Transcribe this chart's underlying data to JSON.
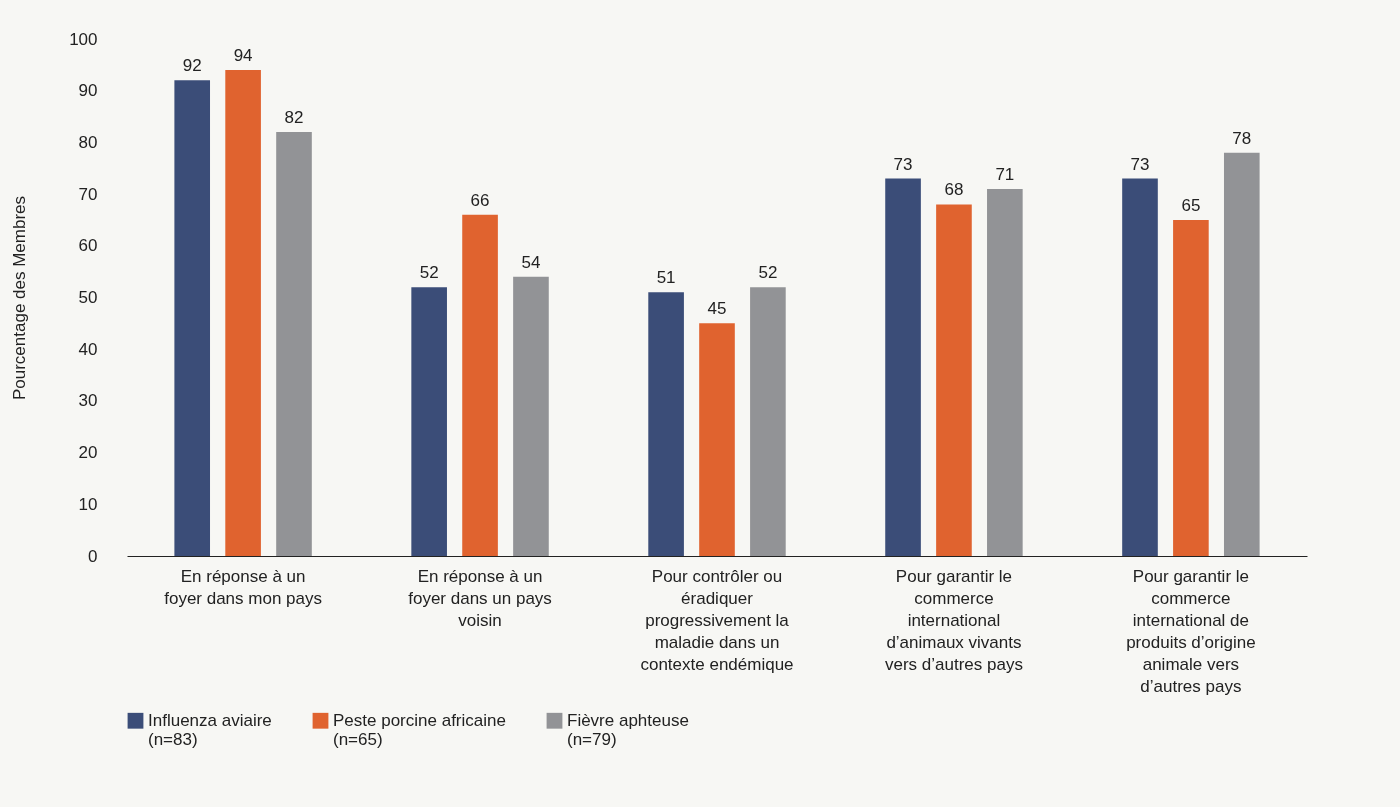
{
  "chart_data": {
    "type": "bar",
    "ylabel": "Pourcentage des Membres",
    "categories": [
      "En réponse à un foyer dans mon pays",
      "En réponse à un foyer dans un pays voisin",
      "Pour contrôler ou éradiquer progressivement la maladie dans un contexte endémique",
      "Pour garantir le commerce international d’animaux vivants vers d’autres pays",
      "Pour garantir le commerce international de produits d’origine animale vers d’autres pays"
    ],
    "series": [
      {
        "name": "Influenza aviaire (n=83)",
        "color": "#3b4d78",
        "values": [
          92,
          52,
          51,
          73,
          73
        ]
      },
      {
        "name": "Peste porcine africaine (n=65)",
        "color": "#e0632f",
        "values": [
          94,
          66,
          45,
          68,
          65
        ]
      },
      {
        "name": "Fièvre aphteuse (n=79)",
        "color": "#929396",
        "values": [
          82,
          54,
          52,
          71,
          78
        ]
      }
    ],
    "ylim": [
      0,
      100
    ],
    "yticks": [
      0,
      10,
      20,
      30,
      40,
      50,
      60,
      70,
      80,
      90,
      100
    ],
    "data_labels": true,
    "grid": false,
    "legend": "bottom"
  }
}
